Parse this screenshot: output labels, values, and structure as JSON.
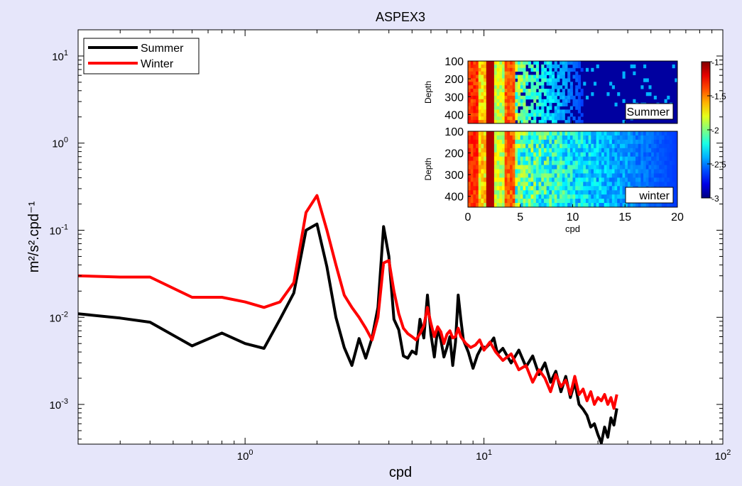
{
  "chart_data": {
    "type": "line",
    "title": "ASPEX3",
    "xlabel": "cpd",
    "ylabel": "m²/s².cpd⁻¹",
    "x_scale": "log",
    "y_scale": "log",
    "xlim": [
      0.2,
      100
    ],
    "ylim": [
      0.00035,
      20
    ],
    "x_ticks": [
      1,
      10,
      100
    ],
    "x_tick_labels": [
      {
        "base": "10",
        "exp": "0"
      },
      {
        "base": "10",
        "exp": "1"
      },
      {
        "base": "10",
        "exp": "2"
      }
    ],
    "y_ticks": [
      0.001,
      0.01,
      0.1,
      1,
      10
    ],
    "y_tick_labels": [
      {
        "base": "10",
        "exp": "-3"
      },
      {
        "base": "10",
        "exp": "-2"
      },
      {
        "base": "10",
        "exp": "-1"
      },
      {
        "base": "10",
        "exp": "0"
      },
      {
        "base": "10",
        "exp": "1"
      }
    ],
    "grid": false,
    "legend_position": "top-left",
    "series": [
      {
        "name": "Summer",
        "color": "#000000",
        "points": [
          [
            0.2,
            0.011
          ],
          [
            0.3,
            0.0098
          ],
          [
            0.4,
            0.0088
          ],
          [
            0.6,
            0.0047
          ],
          [
            0.8,
            0.0066
          ],
          [
            1.0,
            0.005
          ],
          [
            1.2,
            0.0044
          ],
          [
            1.4,
            0.0095
          ],
          [
            1.6,
            0.019
          ],
          [
            1.8,
            0.1
          ],
          [
            2.0,
            0.118
          ],
          [
            2.2,
            0.038
          ],
          [
            2.4,
            0.01
          ],
          [
            2.6,
            0.0045
          ],
          [
            2.8,
            0.0028
          ],
          [
            3.0,
            0.0057
          ],
          [
            3.2,
            0.0034
          ],
          [
            3.4,
            0.0058
          ],
          [
            3.6,
            0.013
          ],
          [
            3.8,
            0.11
          ],
          [
            4.0,
            0.05
          ],
          [
            4.2,
            0.0095
          ],
          [
            4.4,
            0.0072
          ],
          [
            4.6,
            0.0036
          ],
          [
            4.8,
            0.0034
          ],
          [
            5.0,
            0.0041
          ],
          [
            5.2,
            0.0038
          ],
          [
            5.4,
            0.0095
          ],
          [
            5.6,
            0.0058
          ],
          [
            5.8,
            0.018
          ],
          [
            6.0,
            0.0064
          ],
          [
            6.2,
            0.0035
          ],
          [
            6.4,
            0.0075
          ],
          [
            6.6,
            0.0055
          ],
          [
            6.8,
            0.0035
          ],
          [
            7.0,
            0.0045
          ],
          [
            7.2,
            0.006
          ],
          [
            7.4,
            0.0028
          ],
          [
            7.6,
            0.0052
          ],
          [
            7.8,
            0.018
          ],
          [
            8.0,
            0.0095
          ],
          [
            8.2,
            0.0055
          ],
          [
            8.6,
            0.004
          ],
          [
            9.0,
            0.0026
          ],
          [
            9.4,
            0.0037
          ],
          [
            9.8,
            0.0046
          ],
          [
            10.2,
            0.0045
          ],
          [
            10.6,
            0.005
          ],
          [
            11.0,
            0.0058
          ],
          [
            11.4,
            0.0038
          ],
          [
            12,
            0.0044
          ],
          [
            13,
            0.003
          ],
          [
            14,
            0.0042
          ],
          [
            15,
            0.0027
          ],
          [
            16,
            0.0036
          ],
          [
            17,
            0.0022
          ],
          [
            18,
            0.003
          ],
          [
            19,
            0.0018
          ],
          [
            20,
            0.0024
          ],
          [
            21,
            0.0014
          ],
          [
            22,
            0.0021
          ],
          [
            23,
            0.0012
          ],
          [
            24,
            0.0018
          ],
          [
            25,
            0.001
          ],
          [
            26,
            0.00088
          ],
          [
            27,
            0.00075
          ],
          [
            28,
            0.00055
          ],
          [
            29,
            0.0006
          ],
          [
            30,
            0.00045
          ],
          [
            31,
            0.00036
          ],
          [
            32,
            0.00055
          ],
          [
            33,
            0.00042
          ],
          [
            34,
            0.0007
          ],
          [
            35,
            0.00058
          ],
          [
            36,
            0.0009
          ]
        ]
      },
      {
        "name": "Winter",
        "color": "#ff0000",
        "points": [
          [
            0.2,
            0.03
          ],
          [
            0.3,
            0.029
          ],
          [
            0.4,
            0.029
          ],
          [
            0.6,
            0.017
          ],
          [
            0.8,
            0.017
          ],
          [
            1.0,
            0.015
          ],
          [
            1.2,
            0.013
          ],
          [
            1.4,
            0.015
          ],
          [
            1.6,
            0.025
          ],
          [
            1.8,
            0.16
          ],
          [
            2.0,
            0.25
          ],
          [
            2.2,
            0.1
          ],
          [
            2.4,
            0.04
          ],
          [
            2.6,
            0.018
          ],
          [
            2.8,
            0.013
          ],
          [
            3.0,
            0.01
          ],
          [
            3.2,
            0.0075
          ],
          [
            3.4,
            0.0055
          ],
          [
            3.6,
            0.01
          ],
          [
            3.8,
            0.042
          ],
          [
            4.0,
            0.045
          ],
          [
            4.2,
            0.02
          ],
          [
            4.4,
            0.011
          ],
          [
            4.6,
            0.0075
          ],
          [
            4.8,
            0.0065
          ],
          [
            5.0,
            0.006
          ],
          [
            5.2,
            0.0055
          ],
          [
            5.4,
            0.0065
          ],
          [
            5.6,
            0.008
          ],
          [
            5.8,
            0.013
          ],
          [
            6.0,
            0.0085
          ],
          [
            6.2,
            0.006
          ],
          [
            6.4,
            0.0078
          ],
          [
            6.6,
            0.0068
          ],
          [
            6.8,
            0.005
          ],
          [
            7.0,
            0.0064
          ],
          [
            7.2,
            0.007
          ],
          [
            7.4,
            0.0058
          ],
          [
            7.6,
            0.006
          ],
          [
            7.8,
            0.0075
          ],
          [
            8.0,
            0.006
          ],
          [
            8.4,
            0.005
          ],
          [
            8.8,
            0.0045
          ],
          [
            9.2,
            0.0048
          ],
          [
            9.6,
            0.0055
          ],
          [
            10.0,
            0.0042
          ],
          [
            10.6,
            0.0052
          ],
          [
            11.2,
            0.004
          ],
          [
            12,
            0.0032
          ],
          [
            13,
            0.0038
          ],
          [
            14,
            0.0025
          ],
          [
            15,
            0.0028
          ],
          [
            16,
            0.0018
          ],
          [
            17,
            0.0025
          ],
          [
            18,
            0.002
          ],
          [
            19,
            0.0014
          ],
          [
            20,
            0.0022
          ],
          [
            21,
            0.0016
          ],
          [
            22,
            0.0019
          ],
          [
            23,
            0.0013
          ],
          [
            24,
            0.0021
          ],
          [
            25,
            0.0013
          ],
          [
            26,
            0.0015
          ],
          [
            27,
            0.0011
          ],
          [
            28,
            0.0014
          ],
          [
            29,
            0.001
          ],
          [
            30,
            0.0012
          ],
          [
            31,
            0.0011
          ],
          [
            32,
            0.0013
          ],
          [
            33,
            0.001
          ],
          [
            34,
            0.0012
          ],
          [
            35,
            0.0009
          ],
          [
            36,
            0.0013
          ]
        ]
      }
    ],
    "inset": {
      "type": "heatmap",
      "xlabel": "cpd",
      "ylabel": "Depth",
      "xlim": [
        0,
        20
      ],
      "ylim": [
        100,
        450
      ],
      "x_ticks": [
        0,
        5,
        10,
        15,
        20
      ],
      "y_ticks": [
        100,
        200,
        300,
        400
      ],
      "colorbar": {
        "range": [
          -3,
          -1
        ],
        "ticks": [
          -1,
          -1.5,
          -2,
          -2.5,
          -3
        ],
        "tick_labels": [
          "-1",
          "-1.5",
          "-2",
          "-2.5",
          "-3"
        ]
      },
      "panels": [
        {
          "label": "Summer",
          "cutoff_cpd": 11
        },
        {
          "label": "winter",
          "cutoff_cpd": 20
        }
      ]
    }
  }
}
